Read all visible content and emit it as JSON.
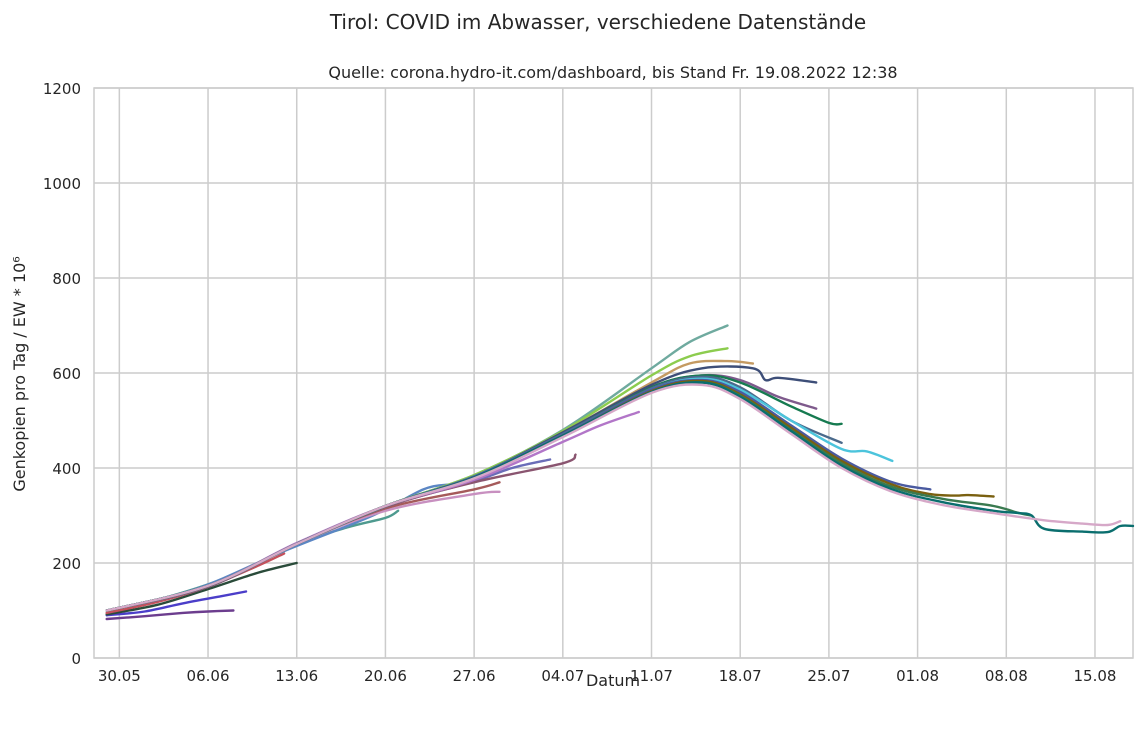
{
  "chart_data": {
    "type": "line",
    "title": "Tirol: COVID im Abwasser, verschiedene Datenstände",
    "subtitle": "Quelle: corona.hydro-it.com/dashboard, bis Stand Fr. 19.08.2022 12:38",
    "xlabel": "Datum",
    "ylabel": "Genkopien pro Tag / EW * 10⁶",
    "ylim": [
      0,
      1200
    ],
    "yticks": [
      0,
      200,
      400,
      600,
      800,
      1000,
      1200
    ],
    "xlim": [
      "2022-05-28",
      "2022-08-18"
    ],
    "xticks": [
      {
        "date": "2022-05-30",
        "label": "30.05"
      },
      {
        "date": "2022-06-06",
        "label": "06.06"
      },
      {
        "date": "2022-06-13",
        "label": "13.06"
      },
      {
        "date": "2022-06-20",
        "label": "20.06"
      },
      {
        "date": "2022-06-27",
        "label": "27.06"
      },
      {
        "date": "2022-07-04",
        "label": "04.07"
      },
      {
        "date": "2022-07-11",
        "label": "11.07"
      },
      {
        "date": "2022-07-18",
        "label": "18.07"
      },
      {
        "date": "2022-07-25",
        "label": "25.07"
      },
      {
        "date": "2022-08-01",
        "label": "01.08"
      },
      {
        "date": "2022-08-08",
        "label": "08.08"
      },
      {
        "date": "2022-08-15",
        "label": "15.08"
      }
    ],
    "grid": true,
    "series": [
      {
        "color": "#6c3d8e",
        "points": [
          [
            "2022-05-29",
            82
          ],
          [
            "2022-06-01",
            88
          ],
          [
            "2022-06-04",
            95
          ],
          [
            "2022-06-06",
            98
          ],
          [
            "2022-06-08",
            100
          ]
        ]
      },
      {
        "color": "#4b3ec9",
        "points": [
          [
            "2022-05-29",
            90
          ],
          [
            "2022-06-01",
            98
          ],
          [
            "2022-06-04",
            115
          ],
          [
            "2022-06-07",
            130
          ],
          [
            "2022-06-09",
            140
          ]
        ]
      },
      {
        "color": "#2a4b3a",
        "points": [
          [
            "2022-05-29",
            92
          ],
          [
            "2022-06-02",
            112
          ],
          [
            "2022-06-06",
            145
          ],
          [
            "2022-06-10",
            180
          ],
          [
            "2022-06-13",
            200
          ]
        ]
      },
      {
        "color": "#c4515b",
        "points": [
          [
            "2022-05-29",
            95
          ],
          [
            "2022-06-02",
            118
          ],
          [
            "2022-06-06",
            150
          ],
          [
            "2022-06-10",
            195
          ],
          [
            "2022-06-12",
            220
          ]
        ]
      },
      {
        "color": "#4e9a8f",
        "points": [
          [
            "2022-05-29",
            100
          ],
          [
            "2022-06-03",
            130
          ],
          [
            "2022-06-08",
            175
          ],
          [
            "2022-06-13",
            240
          ],
          [
            "2022-06-17",
            275
          ],
          [
            "2022-06-20",
            295
          ],
          [
            "2022-06-21",
            310
          ]
        ]
      },
      {
        "color": "#5b86c4",
        "points": [
          [
            "2022-05-29",
            100
          ],
          [
            "2022-06-05",
            145
          ],
          [
            "2022-06-12",
            225
          ],
          [
            "2022-06-19",
            300
          ],
          [
            "2022-06-23",
            355
          ],
          [
            "2022-06-25",
            365
          ]
        ]
      },
      {
        "color": "#c890c0",
        "points": [
          [
            "2022-05-29",
            100
          ],
          [
            "2022-06-06",
            150
          ],
          [
            "2022-06-13",
            240
          ],
          [
            "2022-06-20",
            310
          ],
          [
            "2022-06-27",
            345
          ],
          [
            "2022-06-29",
            350
          ]
        ]
      },
      {
        "color": "#a55a5a",
        "points": [
          [
            "2022-05-29",
            100
          ],
          [
            "2022-06-06",
            150
          ],
          [
            "2022-06-13",
            240
          ],
          [
            "2022-06-20",
            315
          ],
          [
            "2022-06-27",
            355
          ],
          [
            "2022-06-29",
            370
          ]
        ]
      },
      {
        "color": "#6a6db8",
        "points": [
          [
            "2022-05-29",
            100
          ],
          [
            "2022-06-06",
            150
          ],
          [
            "2022-06-13",
            240
          ],
          [
            "2022-06-20",
            318
          ],
          [
            "2022-06-27",
            372
          ],
          [
            "2022-06-30",
            400
          ],
          [
            "2022-07-03",
            418
          ]
        ]
      },
      {
        "color": "#8a5570",
        "points": [
          [
            "2022-05-29",
            100
          ],
          [
            "2022-06-06",
            150
          ],
          [
            "2022-06-13",
            240
          ],
          [
            "2022-06-20",
            318
          ],
          [
            "2022-06-27",
            370
          ],
          [
            "2022-07-04",
            410
          ],
          [
            "2022-07-05",
            428
          ]
        ]
      },
      {
        "color": "#b276c8",
        "points": [
          [
            "2022-05-29",
            100
          ],
          [
            "2022-06-06",
            152
          ],
          [
            "2022-06-13",
            242
          ],
          [
            "2022-06-20",
            320
          ],
          [
            "2022-06-27",
            375
          ],
          [
            "2022-07-04",
            455
          ],
          [
            "2022-07-07",
            490
          ],
          [
            "2022-07-10",
            518
          ]
        ]
      },
      {
        "color": "#6faa9f",
        "points": [
          [
            "2022-05-29",
            100
          ],
          [
            "2022-06-06",
            152
          ],
          [
            "2022-06-13",
            240
          ],
          [
            "2022-06-20",
            320
          ],
          [
            "2022-06-27",
            385
          ],
          [
            "2022-07-04",
            480
          ],
          [
            "2022-07-11",
            610
          ],
          [
            "2022-07-14",
            665
          ],
          [
            "2022-07-17",
            700
          ]
        ]
      },
      {
        "color": "#8ccc4e",
        "points": [
          [
            "2022-05-29",
            100
          ],
          [
            "2022-06-06",
            152
          ],
          [
            "2022-06-13",
            240
          ],
          [
            "2022-06-20",
            320
          ],
          [
            "2022-06-27",
            385
          ],
          [
            "2022-07-04",
            478
          ],
          [
            "2022-07-11",
            595
          ],
          [
            "2022-07-14",
            635
          ],
          [
            "2022-07-17",
            652
          ]
        ]
      },
      {
        "color": "#c49a62",
        "points": [
          [
            "2022-05-29",
            100
          ],
          [
            "2022-06-06",
            152
          ],
          [
            "2022-06-13",
            240
          ],
          [
            "2022-06-20",
            320
          ],
          [
            "2022-06-27",
            382
          ],
          [
            "2022-07-04",
            475
          ],
          [
            "2022-07-11",
            580
          ],
          [
            "2022-07-14",
            620
          ],
          [
            "2022-07-17",
            625
          ],
          [
            "2022-07-19",
            620
          ]
        ]
      },
      {
        "color": "#3d4e78",
        "points": [
          [
            "2022-05-29",
            100
          ],
          [
            "2022-06-06",
            152
          ],
          [
            "2022-06-13",
            240
          ],
          [
            "2022-06-20",
            320
          ],
          [
            "2022-06-27",
            382
          ],
          [
            "2022-07-04",
            475
          ],
          [
            "2022-07-11",
            575
          ],
          [
            "2022-07-15",
            610
          ],
          [
            "2022-07-19",
            610
          ],
          [
            "2022-07-20",
            585
          ],
          [
            "2022-07-21",
            590
          ],
          [
            "2022-07-24",
            580
          ]
        ]
      },
      {
        "color": "#7e5a8c",
        "points": [
          [
            "2022-05-29",
            100
          ],
          [
            "2022-06-06",
            152
          ],
          [
            "2022-06-13",
            240
          ],
          [
            "2022-06-20",
            320
          ],
          [
            "2022-06-27",
            382
          ],
          [
            "2022-07-04",
            472
          ],
          [
            "2022-07-11",
            570
          ],
          [
            "2022-07-15",
            595
          ],
          [
            "2022-07-18",
            585
          ],
          [
            "2022-07-21",
            550
          ],
          [
            "2022-07-24",
            525
          ]
        ]
      },
      {
        "color": "#167a50",
        "points": [
          [
            "2022-05-29",
            100
          ],
          [
            "2022-06-06",
            152
          ],
          [
            "2022-06-13",
            240
          ],
          [
            "2022-06-20",
            320
          ],
          [
            "2022-06-27",
            382
          ],
          [
            "2022-07-04",
            472
          ],
          [
            "2022-07-11",
            570
          ],
          [
            "2022-07-15",
            595
          ],
          [
            "2022-07-18",
            580
          ],
          [
            "2022-07-22",
            530
          ],
          [
            "2022-07-25",
            495
          ],
          [
            "2022-07-26",
            493
          ]
        ]
      },
      {
        "color": "#4a6a8c",
        "points": [
          [
            "2022-05-29",
            100
          ],
          [
            "2022-06-06",
            152
          ],
          [
            "2022-06-13",
            240
          ],
          [
            "2022-06-20",
            320
          ],
          [
            "2022-06-27",
            382
          ],
          [
            "2022-07-04",
            472
          ],
          [
            "2022-07-11",
            568
          ],
          [
            "2022-07-15",
            592
          ],
          [
            "2022-07-18",
            570
          ],
          [
            "2022-07-22",
            500
          ],
          [
            "2022-07-26",
            453
          ]
        ]
      },
      {
        "color": "#4cc4dc",
        "points": [
          [
            "2022-05-29",
            100
          ],
          [
            "2022-06-06",
            152
          ],
          [
            "2022-06-13",
            240
          ],
          [
            "2022-06-20",
            320
          ],
          [
            "2022-06-27",
            382
          ],
          [
            "2022-07-04",
            470
          ],
          [
            "2022-07-11",
            565
          ],
          [
            "2022-07-15",
            588
          ],
          [
            "2022-07-18",
            565
          ],
          [
            "2022-07-22",
            500
          ],
          [
            "2022-07-26",
            440
          ],
          [
            "2022-07-28",
            435
          ],
          [
            "2022-07-30",
            415
          ]
        ]
      },
      {
        "color": "#4a5aa0",
        "points": [
          [
            "2022-05-29",
            100
          ],
          [
            "2022-06-06",
            152
          ],
          [
            "2022-06-13",
            240
          ],
          [
            "2022-06-20",
            320
          ],
          [
            "2022-06-27",
            382
          ],
          [
            "2022-07-04",
            470
          ],
          [
            "2022-07-11",
            565
          ],
          [
            "2022-07-15",
            585
          ],
          [
            "2022-07-18",
            560
          ],
          [
            "2022-07-22",
            490
          ],
          [
            "2022-07-26",
            420
          ],
          [
            "2022-07-30",
            370
          ],
          [
            "2022-08-02",
            355
          ]
        ]
      },
      {
        "color": "#7a6010",
        "points": [
          [
            "2022-05-29",
            100
          ],
          [
            "2022-06-06",
            152
          ],
          [
            "2022-06-13",
            240
          ],
          [
            "2022-06-20",
            320
          ],
          [
            "2022-06-27",
            380
          ],
          [
            "2022-07-04",
            468
          ],
          [
            "2022-07-11",
            562
          ],
          [
            "2022-07-15",
            583
          ],
          [
            "2022-07-18",
            555
          ],
          [
            "2022-07-22",
            485
          ],
          [
            "2022-07-26",
            415
          ],
          [
            "2022-07-30",
            365
          ],
          [
            "2022-08-02",
            345
          ],
          [
            "2022-08-04",
            342
          ],
          [
            "2022-08-05",
            343
          ],
          [
            "2022-08-07",
            340
          ]
        ]
      },
      {
        "color": "#3a7a50",
        "points": [
          [
            "2022-05-29",
            100
          ],
          [
            "2022-06-06",
            152
          ],
          [
            "2022-06-13",
            240
          ],
          [
            "2022-06-20",
            320
          ],
          [
            "2022-06-27",
            380
          ],
          [
            "2022-07-04",
            468
          ],
          [
            "2022-07-11",
            560
          ],
          [
            "2022-07-15",
            580
          ],
          [
            "2022-07-18",
            552
          ],
          [
            "2022-07-22",
            480
          ],
          [
            "2022-07-26",
            410
          ],
          [
            "2022-07-30",
            360
          ],
          [
            "2022-08-03",
            335
          ],
          [
            "2022-08-07",
            320
          ],
          [
            "2022-08-09",
            305
          ],
          [
            "2022-08-10",
            300
          ]
        ]
      },
      {
        "color": "#0a6e6e",
        "points": [
          [
            "2022-05-29",
            100
          ],
          [
            "2022-06-06",
            152
          ],
          [
            "2022-06-13",
            240
          ],
          [
            "2022-06-20",
            320
          ],
          [
            "2022-06-27",
            380
          ],
          [
            "2022-07-04",
            468
          ],
          [
            "2022-07-11",
            560
          ],
          [
            "2022-07-15",
            580
          ],
          [
            "2022-07-18",
            550
          ],
          [
            "2022-07-22",
            478
          ],
          [
            "2022-07-26",
            405
          ],
          [
            "2022-07-30",
            355
          ],
          [
            "2022-08-03",
            328
          ],
          [
            "2022-08-07",
            310
          ],
          [
            "2022-08-09",
            305
          ],
          [
            "2022-08-10",
            300
          ],
          [
            "2022-08-11",
            272
          ],
          [
            "2022-08-14",
            266
          ],
          [
            "2022-08-16",
            265
          ],
          [
            "2022-08-17",
            278
          ],
          [
            "2022-08-18",
            278
          ]
        ]
      },
      {
        "color": "#d6a8c8",
        "points": [
          [
            "2022-05-29",
            100
          ],
          [
            "2022-06-06",
            152
          ],
          [
            "2022-06-13",
            240
          ],
          [
            "2022-06-20",
            320
          ],
          [
            "2022-06-27",
            378
          ],
          [
            "2022-07-04",
            465
          ],
          [
            "2022-07-11",
            558
          ],
          [
            "2022-07-15",
            575
          ],
          [
            "2022-07-18",
            545
          ],
          [
            "2022-07-22",
            472
          ],
          [
            "2022-07-26",
            400
          ],
          [
            "2022-07-30",
            350
          ],
          [
            "2022-08-03",
            322
          ],
          [
            "2022-08-07",
            305
          ],
          [
            "2022-08-11",
            290
          ],
          [
            "2022-08-14",
            283
          ],
          [
            "2022-08-16",
            280
          ],
          [
            "2022-08-17",
            288
          ]
        ]
      }
    ]
  }
}
